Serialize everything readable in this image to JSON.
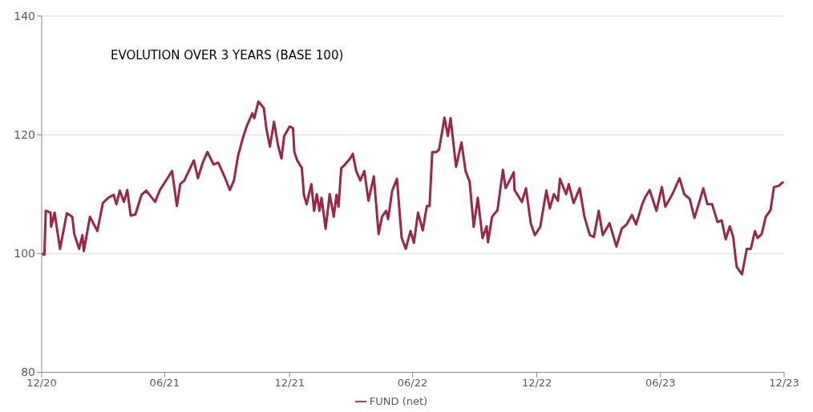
{
  "chart_data": {
    "type": "line",
    "title": "EVOLUTION OVER 3 YEARS (BASE 100)",
    "x": [
      "2020-12-31",
      "2021-01-04",
      "2021-01-06",
      "2021-01-13",
      "2021-01-14",
      "2021-01-19",
      "2021-01-27",
      "2021-02-06",
      "2021-02-14",
      "2021-02-17",
      "2021-02-24",
      "2021-03-01",
      "2021-03-03",
      "2021-03-12",
      "2021-03-23",
      "2021-03-31",
      "2021-04-08",
      "2021-04-16",
      "2021-04-20",
      "2021-04-25",
      "2021-05-01",
      "2021-05-06",
      "2021-05-11",
      "2021-05-18",
      "2021-05-27",
      "2021-06-03",
      "2021-06-16",
      "2021-06-23",
      "2021-07-02",
      "2021-07-11",
      "2021-07-18",
      "2021-07-23",
      "2021-07-29",
      "2021-08-12",
      "2021-08-18",
      "2021-08-25",
      "2021-09-01",
      "2021-09-10",
      "2021-09-17",
      "2021-09-26",
      "2021-10-04",
      "2021-10-10",
      "2021-10-16",
      "2021-10-23",
      "2021-10-29",
      "2021-11-06",
      "2021-11-09",
      "2021-11-15",
      "2021-11-23",
      "2021-11-27",
      "2021-12-02",
      "2021-12-08",
      "2021-12-14",
      "2021-12-19",
      "2021-12-23",
      "2021-12-31",
      "2022-01-05",
      "2022-01-07",
      "2022-01-11",
      "2022-01-18",
      "2022-01-21",
      "2022-01-25",
      "2022-02-01",
      "2022-02-05",
      "2022-02-09",
      "2022-02-13",
      "2022-02-16",
      "2022-02-22",
      "2022-02-28",
      "2022-03-06",
      "2022-03-10",
      "2022-03-13",
      "2022-03-17",
      "2022-03-21",
      "2022-03-30",
      "2022-04-03",
      "2022-04-08",
      "2022-04-14",
      "2022-04-20",
      "2022-04-26",
      "2022-05-04",
      "2022-05-11",
      "2022-05-16",
      "2022-05-22",
      "2022-05-25",
      "2022-05-31",
      "2022-06-07",
      "2022-06-14",
      "2022-06-20",
      "2022-06-27",
      "2022-07-02",
      "2022-07-08",
      "2022-07-15",
      "2022-07-21",
      "2022-07-25",
      "2022-07-29",
      "2022-08-04",
      "2022-08-08",
      "2022-08-16",
      "2022-08-21",
      "2022-08-25",
      "2022-09-02",
      "2022-09-10",
      "2022-09-16",
      "2022-09-22",
      "2022-09-28",
      "2022-10-04",
      "2022-10-11",
      "2022-10-17",
      "2022-10-19",
      "2022-10-25",
      "2022-11-02",
      "2022-11-10",
      "2022-11-14",
      "2022-11-26",
      "2022-11-27",
      "2022-12-08",
      "2022-12-14",
      "2022-12-21",
      "2022-12-27",
      "2023-01-04",
      "2023-01-07",
      "2023-01-13",
      "2023-01-18",
      "2023-01-24",
      "2023-01-30",
      "2023-02-02",
      "2023-02-11",
      "2023-02-15",
      "2023-02-22",
      "2023-03-03",
      "2023-03-10",
      "2023-03-18",
      "2023-03-24",
      "2023-03-31",
      "2023-04-06",
      "2023-04-16",
      "2023-04-26",
      "2023-05-04",
      "2023-05-11",
      "2023-05-19",
      "2023-05-25",
      "2023-06-03",
      "2023-06-08",
      "2023-06-14",
      "2023-06-24",
      "2023-07-02",
      "2023-07-07",
      "2023-07-17",
      "2023-07-28",
      "2023-08-04",
      "2023-08-12",
      "2023-08-19",
      "2023-08-28",
      "2023-09-01",
      "2023-09-07",
      "2023-09-14",
      "2023-09-22",
      "2023-09-28",
      "2023-10-04",
      "2023-10-10",
      "2023-10-15",
      "2023-10-20",
      "2023-10-28",
      "2023-11-04",
      "2023-11-10",
      "2023-11-16",
      "2023-11-20",
      "2023-11-26",
      "2023-12-02",
      "2023-12-09",
      "2023-12-14",
      "2023-12-21",
      "2023-12-28"
    ],
    "series": [
      {
        "name": "FUND (net)",
        "color": "#9b2743",
        "values": [
          100,
          99.8,
          107.2,
          106.9,
          104.5,
          106.9,
          100.8,
          106.8,
          106.2,
          103.3,
          100.8,
          103.1,
          100.4,
          106.2,
          103.8,
          108.5,
          109.4,
          109.9,
          108.3,
          110.6,
          108.7,
          110.7,
          106.4,
          106.6,
          109.9,
          110.6,
          108.7,
          110.7,
          112.3,
          113.9,
          108.0,
          111.7,
          112.3,
          115.7,
          112.7,
          115.3,
          117.1,
          115.0,
          115.3,
          113.0,
          110.7,
          112.3,
          116.4,
          119.4,
          121.5,
          123.6,
          122.8,
          125.6,
          124.5,
          120.9,
          118.0,
          122.2,
          118.2,
          116.0,
          119.8,
          121.4,
          121.1,
          117.1,
          115.7,
          114.4,
          109.9,
          108.3,
          111.7,
          107.2,
          110.0,
          107.2,
          109.4,
          104.2,
          110.0,
          106.2,
          109.9,
          107.9,
          114.4,
          114.8,
          116.0,
          116.8,
          113.9,
          112.3,
          113.9,
          108.9,
          113.0,
          103.3,
          106.2,
          107.2,
          105.8,
          110.6,
          112.6,
          102.6,
          100.8,
          103.8,
          101.8,
          106.9,
          103.9,
          108.0,
          108.0,
          117.1,
          117.1,
          117.5,
          122.9,
          119.8,
          122.8,
          114.6,
          118.7,
          113.9,
          112.1,
          104.5,
          109.4,
          102.6,
          104.6,
          101.9,
          106.2,
          107.3,
          114.1,
          111.0,
          113.7,
          110.7,
          108.7,
          111.0,
          105.1,
          103.1,
          104.5,
          106.6,
          110.6,
          107.6,
          110.0,
          108.9,
          112.6,
          110.0,
          111.7,
          108.5,
          111.0,
          106.2,
          103.1,
          102.8,
          107.2,
          103.1,
          105.1,
          101.2,
          104.2,
          104.9,
          106.5,
          104.9,
          108.3,
          109.6,
          110.7,
          107.2,
          111.2,
          107.9,
          109.9,
          112.7,
          110.0,
          109.2,
          106.0,
          109.4,
          111.0,
          108.3,
          108.3,
          105.3,
          105.6,
          102.4,
          104.6,
          102.8,
          97.8,
          96.5,
          100.8,
          100.8,
          103.8,
          102.6,
          103.3,
          106.2,
          107.3,
          111.2,
          111.4,
          112.1
        ]
      }
    ],
    "xlim": [
      "2020-12-31",
      "2023-12-29"
    ],
    "xticks": [
      {
        "value": "2020-12-31",
        "label": "12/20"
      },
      {
        "value": "2021-06-30",
        "label": "06/21"
      },
      {
        "value": "2021-12-31",
        "label": "12/21"
      },
      {
        "value": "2022-06-30",
        "label": "06/22"
      },
      {
        "value": "2022-12-30",
        "label": "12/22"
      },
      {
        "value": "2023-06-30",
        "label": "06/23"
      },
      {
        "value": "2023-12-29",
        "label": "12/23"
      }
    ],
    "ylim": [
      80,
      140
    ],
    "yticks": [
      80,
      100,
      120,
      140
    ],
    "grid": "y",
    "legend": "bottom",
    "marker": "none",
    "line_style": "solid"
  }
}
